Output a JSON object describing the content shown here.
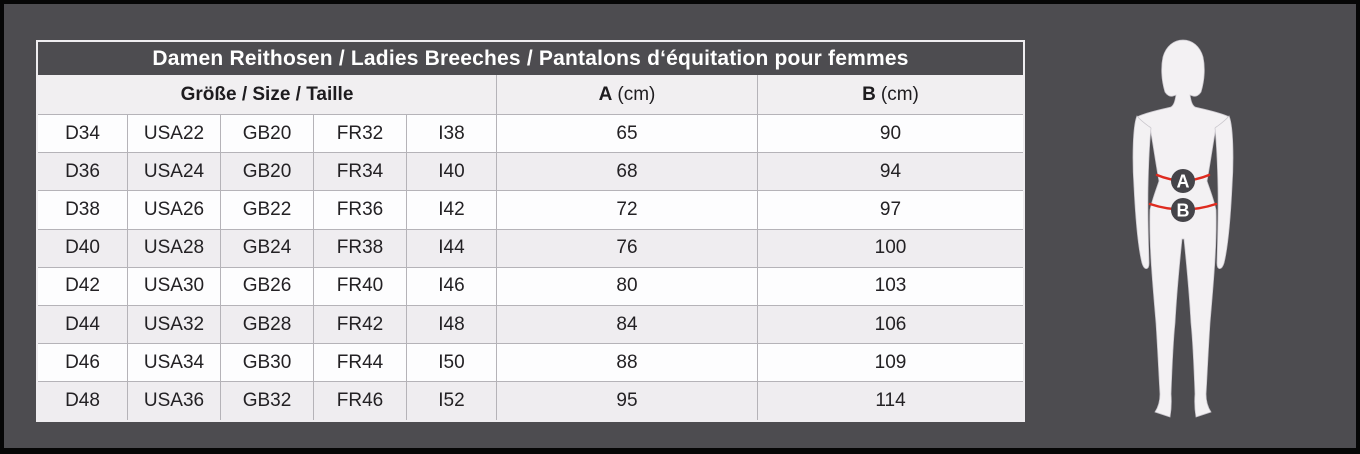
{
  "title": "Damen Reithosen / Ladies Breeches / Pantalons d‘équitation pour femmes",
  "table": {
    "size_header": "Größe / Size / Taille",
    "col_a": "A",
    "col_a_unit": "(cm)",
    "col_b": "B",
    "col_b_unit": "(cm)"
  },
  "chart_data": {
    "type": "table",
    "title": "Damen Reithosen / Ladies Breeches / Pantalons d‘équitation pour femmes",
    "columns": [
      "D",
      "USA",
      "GB",
      "FR",
      "I",
      "A (cm)",
      "B (cm)"
    ],
    "rows": [
      [
        "D34",
        "USA22",
        "GB20",
        "FR32",
        "I38",
        "65",
        "90"
      ],
      [
        "D36",
        "USA24",
        "GB20",
        "FR34",
        "I40",
        "68",
        "94"
      ],
      [
        "D38",
        "USA26",
        "GB22",
        "FR36",
        "I42",
        "72",
        "97"
      ],
      [
        "D40",
        "USA28",
        "GB24",
        "FR38",
        "I44",
        "76",
        "100"
      ],
      [
        "D42",
        "USA30",
        "GB26",
        "FR40",
        "I46",
        "80",
        "103"
      ],
      [
        "D44",
        "USA32",
        "GB28",
        "FR42",
        "I48",
        "84",
        "106"
      ],
      [
        "D46",
        "USA34",
        "GB30",
        "FR44",
        "I50",
        "88",
        "109"
      ],
      [
        "D48",
        "USA36",
        "GB32",
        "FR46",
        "I52",
        "95",
        "114"
      ]
    ]
  },
  "figure": {
    "marker_a": "A",
    "marker_b": "B"
  },
  "colors": {
    "background": "#4d4c50",
    "frame": "#060606",
    "row_light": "#fdfdfe",
    "row_alt": "#efedf0",
    "grid_line": "#b5b3b8",
    "title_text": "#ffffff",
    "cell_text": "#232124",
    "measure_red": "#df2b1f",
    "marker_circle": "#454449",
    "silhouette": "#f3f1f3"
  }
}
